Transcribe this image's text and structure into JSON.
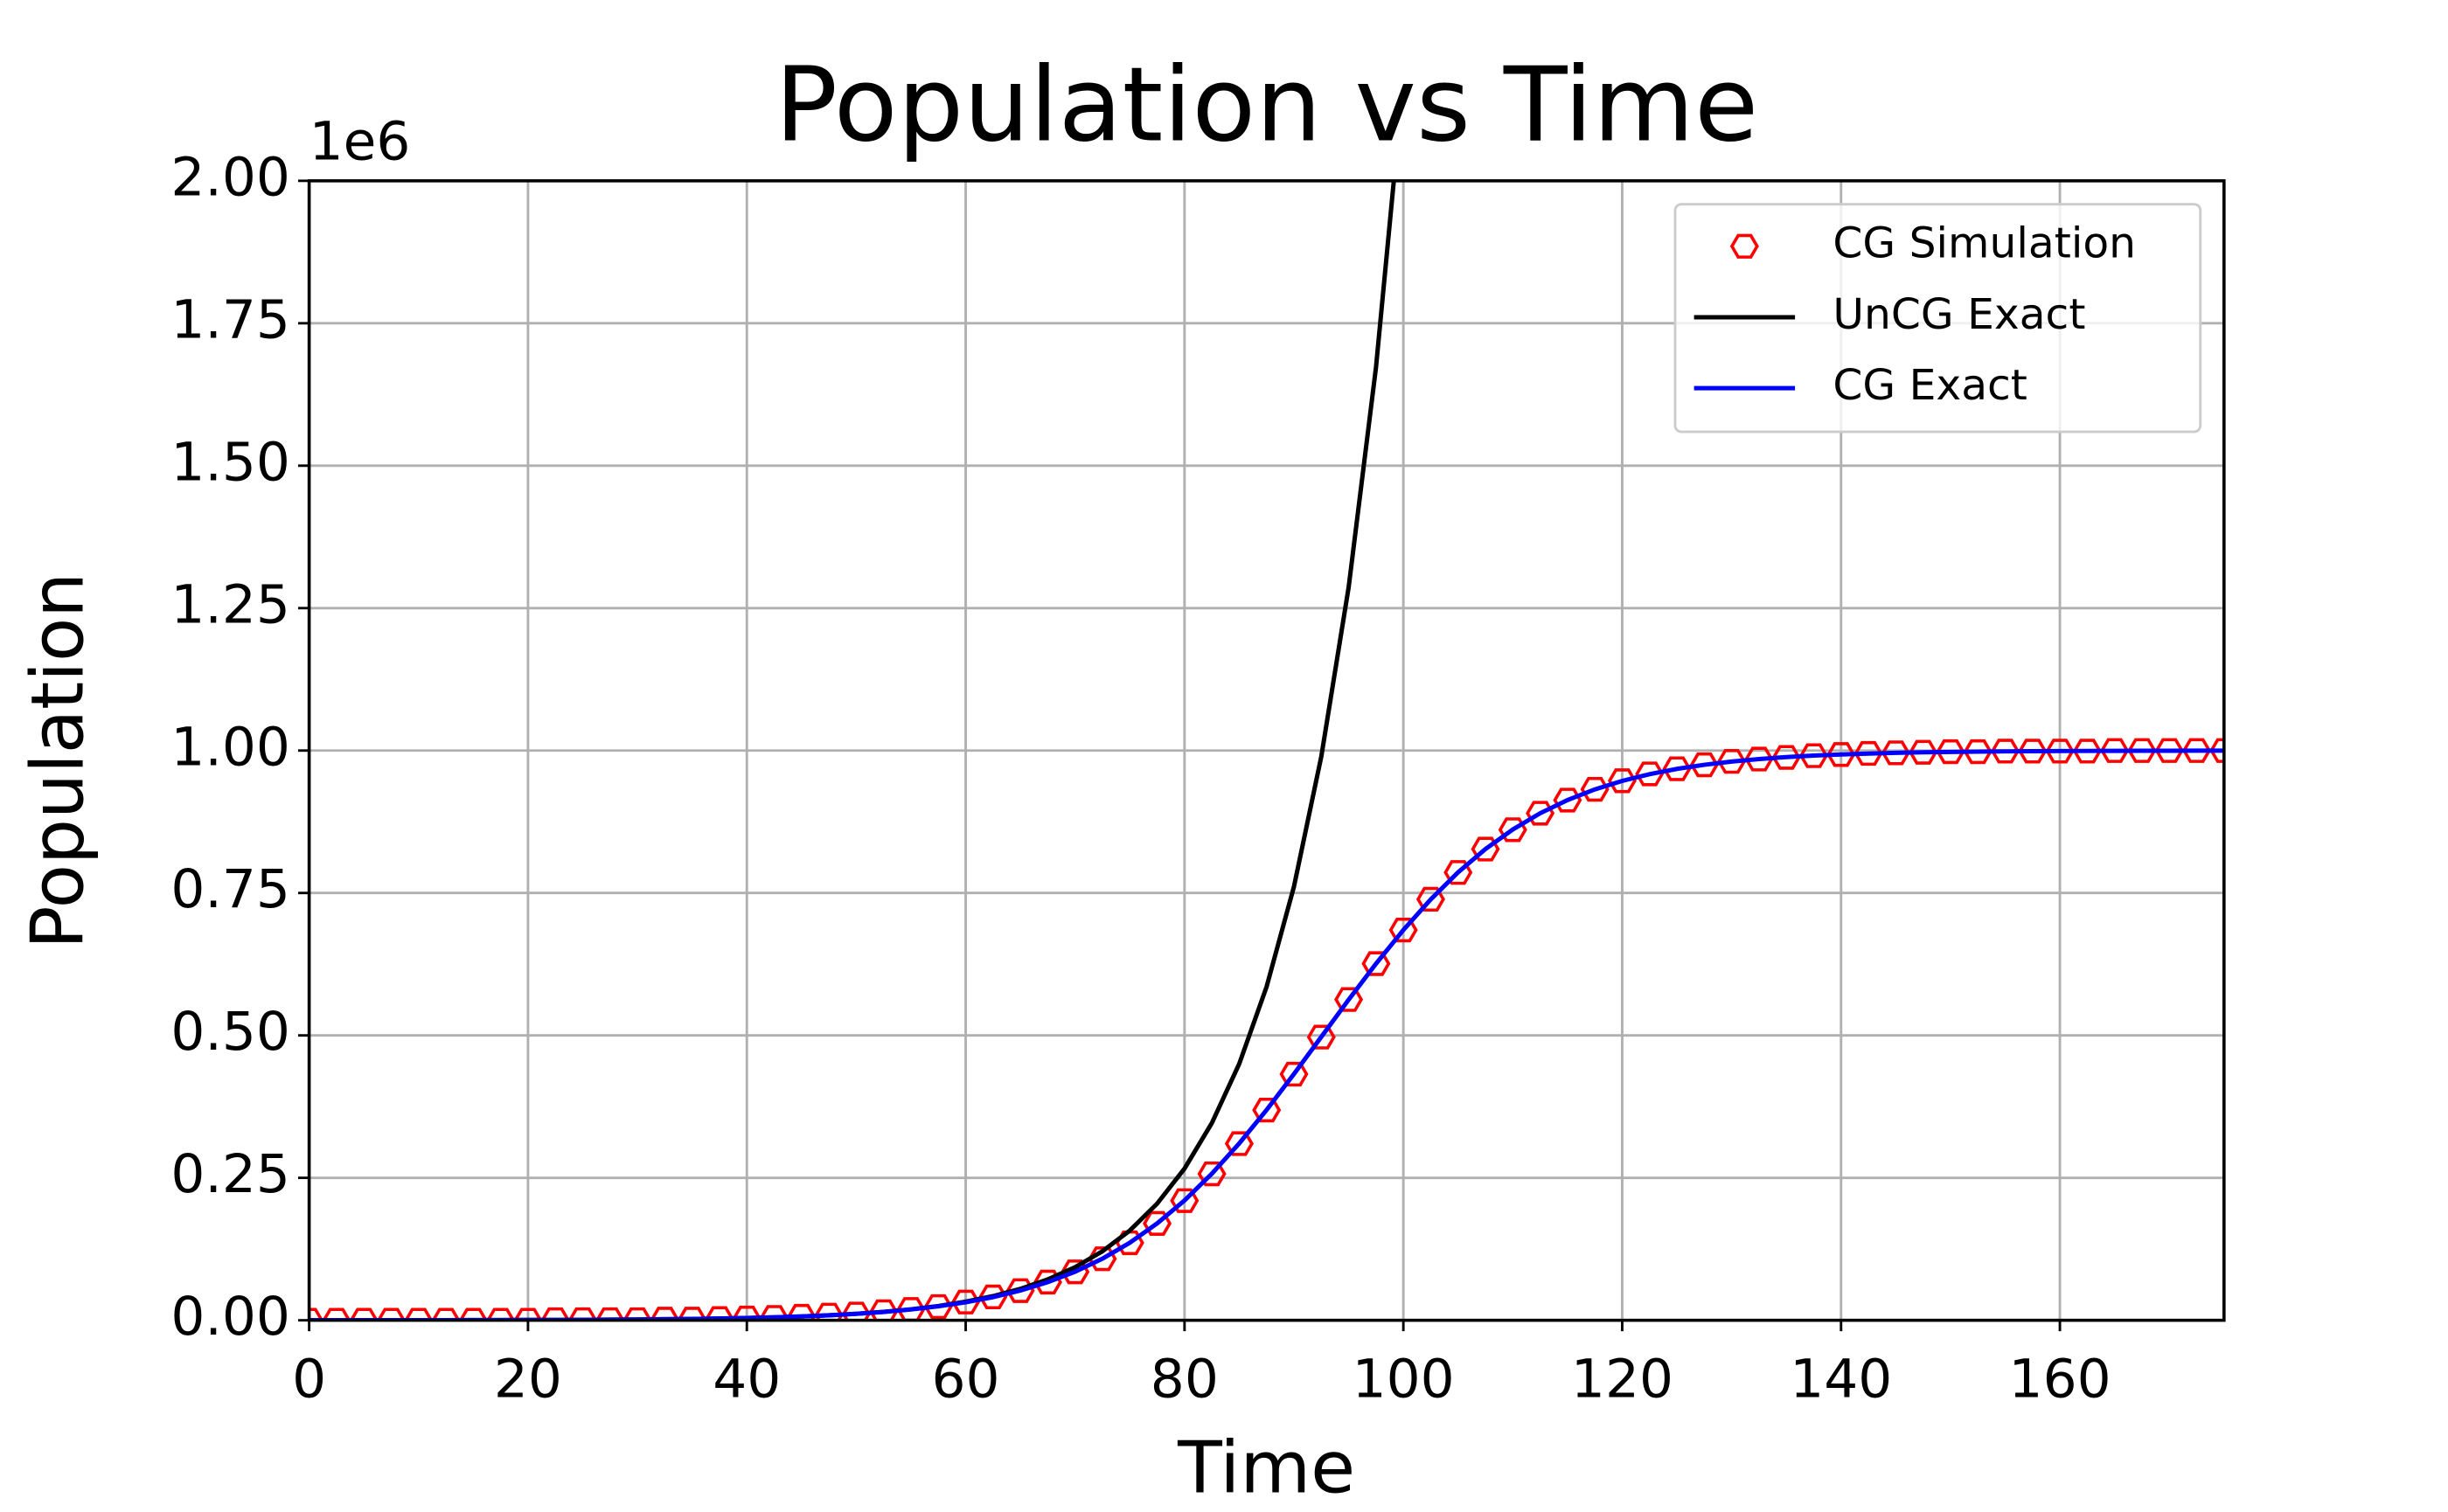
{
  "chart_data": {
    "type": "line",
    "title": "Population vs Time",
    "xlabel": "Time",
    "ylabel": "Population",
    "y_offset_label": "1e6",
    "xlim": [
      0,
      175
    ],
    "xticks": [
      0,
      20,
      40,
      60,
      80,
      100,
      120,
      140,
      160
    ],
    "ylim": [
      0,
      2
    ],
    "yticks": [
      {
        "value": 0,
        "label": "0.00"
      },
      {
        "value": 0.25,
        "label": "0.25"
      },
      {
        "value": 0.5,
        "label": "0.50"
      },
      {
        "value": 0.75,
        "label": "0.75"
      },
      {
        "value": 1,
        "label": "1.00"
      },
      {
        "value": 1.25,
        "label": "1.25"
      },
      {
        "value": 1.5,
        "label": "1.50"
      },
      {
        "value": 1.75,
        "label": "1.75"
      },
      {
        "value": 2,
        "label": "2.00"
      }
    ],
    "grid": true,
    "legend": "upper right",
    "series": [
      {
        "name": "CG Simulation",
        "color": "#ff0000",
        "mode": "markers",
        "x": [
          0,
          2.5,
          5,
          7.5,
          10,
          12.5,
          15,
          17.5,
          20,
          22.5,
          25,
          27.5,
          30,
          32.5,
          35,
          37.5,
          40,
          42.5,
          45,
          47.5,
          50,
          52.5,
          55,
          57.5,
          60,
          62.5,
          65,
          67.5,
          70,
          72.5,
          75,
          77.5,
          80,
          82.5,
          85,
          87.5,
          90,
          92.5,
          95,
          97.5,
          100,
          102.5,
          105,
          107.5,
          110,
          112.5,
          115,
          117.5,
          120,
          122.5,
          125,
          127.5,
          130,
          132.5,
          135,
          137.5,
          140,
          142.5,
          145,
          147.5,
          150,
          152.5,
          155,
          157.5,
          160,
          162.5,
          165,
          167.5,
          170,
          172.5,
          175
        ],
        "values": [
          0,
          0,
          0,
          0,
          0,
          0,
          0,
          0,
          0,
          0.001,
          0.001,
          0.001,
          0.001,
          0.002,
          0.002,
          0.003,
          0.004,
          0.005,
          0.007,
          0.009,
          0.011,
          0.015,
          0.019,
          0.024,
          0.032,
          0.041,
          0.052,
          0.067,
          0.085,
          0.108,
          0.136,
          0.17,
          0.21,
          0.257,
          0.31,
          0.369,
          0.432,
          0.497,
          0.563,
          0.626,
          0.685,
          0.739,
          0.786,
          0.827,
          0.861,
          0.89,
          0.913,
          0.932,
          0.947,
          0.959,
          0.968,
          0.975,
          0.981,
          0.985,
          0.988,
          0.991,
          0.993,
          0.995,
          0.996,
          0.997,
          0.998,
          0.998,
          0.999,
          0.999,
          0.999,
          0.999,
          1,
          1,
          1,
          1,
          1
        ]
      },
      {
        "name": "UnCG Exact",
        "color": "#000000",
        "mode": "line",
        "x": [
          0,
          2.5,
          5,
          7.5,
          10,
          12.5,
          15,
          17.5,
          20,
          22.5,
          25,
          27.5,
          30,
          32.5,
          35,
          37.5,
          40,
          42.5,
          45,
          47.5,
          50,
          52.5,
          55,
          57.5,
          60,
          62.5,
          65,
          67.5,
          70,
          72.5,
          75,
          77.5,
          80,
          82.5,
          85,
          87.5,
          90,
          92.5,
          95,
          97.5,
          100
        ],
        "values": [
          6e-05,
          8e-05,
          0.0001,
          0.00013,
          0.00017,
          0.00022,
          0.00029,
          0.00038,
          0.00049,
          0.00064,
          0.00083,
          0.00107,
          0.0014,
          0.00182,
          0.00236,
          0.00307,
          0.00399,
          0.00519,
          0.00675,
          0.00877,
          0.01141,
          0.01483,
          0.01928,
          0.02507,
          0.0326,
          0.04239,
          0.05512,
          0.07166,
          0.09318,
          0.12115,
          0.15752,
          0.20481,
          0.2663,
          0.34625,
          0.4502,
          0.58535,
          0.76107,
          0.98955,
          1.28662,
          1.67287,
          2.17507
        ]
      },
      {
        "name": "CG Exact",
        "color": "#0000ff",
        "mode": "line",
        "x": [
          0,
          2.5,
          5,
          7.5,
          10,
          12.5,
          15,
          17.5,
          20,
          22.5,
          25,
          27.5,
          30,
          32.5,
          35,
          37.5,
          40,
          42.5,
          45,
          47.5,
          50,
          52.5,
          55,
          57.5,
          60,
          62.5,
          65,
          67.5,
          70,
          72.5,
          75,
          77.5,
          80,
          82.5,
          85,
          87.5,
          90,
          92.5,
          95,
          97.5,
          100,
          102.5,
          105,
          107.5,
          110,
          112.5,
          115,
          117.5,
          120,
          122.5,
          125,
          127.5,
          130,
          132.5,
          135,
          137.5,
          140,
          142.5,
          145,
          147.5,
          150,
          152.5,
          155,
          157.5,
          160,
          162.5,
          165,
          167.5,
          170,
          172.5,
          175
        ],
        "values": [
          6e-05,
          8e-05,
          0.0001,
          0.00013,
          0.00017,
          0.00022,
          0.00029,
          0.00038,
          0.00049,
          0.00064,
          0.00083,
          0.00107,
          0.0014,
          0.00182,
          0.00236,
          0.00306,
          0.00397,
          0.00516,
          0.0067,
          0.00869,
          0.01128,
          0.01461,
          0.01892,
          0.02446,
          0.03157,
          0.04067,
          0.05224,
          0.06687,
          0.08524,
          0.10806,
          0.13608,
          0.16999,
          0.21029,
          0.2572,
          0.31045,
          0.36919,
          0.43216,
          0.49737,
          0.56267,
          0.62587,
          0.68505,
          0.73877,
          0.78619,
          0.82702,
          0.86142,
          0.8899,
          0.9131,
          0.9318,
          0.94671,
          0.9585,
          0.96778,
          0.97503,
          0.98068,
          0.98508,
          0.98848,
          0.99112,
          0.99316,
          0.99473,
          0.99594,
          0.99687,
          0.99759,
          0.99815,
          0.99858,
          0.9989,
          0.99916,
          0.99935,
          0.9995,
          0.99962,
          0.9997,
          0.99977,
          0.99983
        ]
      }
    ]
  }
}
